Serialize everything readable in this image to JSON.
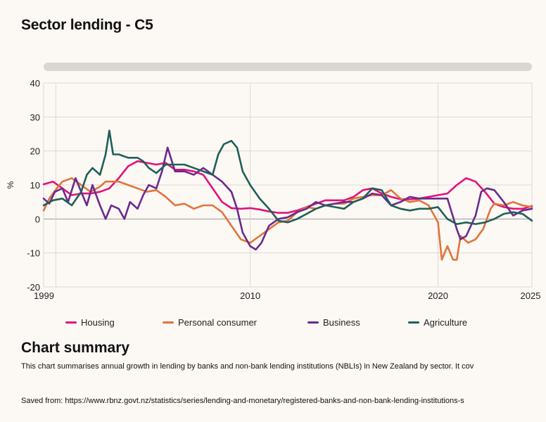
{
  "page": {
    "title": "Sector lending - C5",
    "summary_heading": "Chart summary",
    "summary_text": "This chart summarises annual growth in lending by banks and non-bank lending institutions (NBLIs) in New Zealand by sector. It cov",
    "saved_from": "Saved from: https://www.rbnz.govt.nz/statistics/series/lending-and-monetary/registered-banks-and-non-bank-lending-institutions-s"
  },
  "chart_data": {
    "type": "line",
    "title": "Sector lending - C5",
    "xlabel": "",
    "ylabel": "%",
    "xlim": [
      1999,
      2025
    ],
    "ylim": [
      -20,
      40
    ],
    "yticks": [
      "40",
      "30",
      "20",
      "10",
      "0",
      "-10",
      "-20"
    ],
    "xticks": [
      "1999",
      "2010",
      "2020",
      "2025"
    ],
    "grid": true,
    "legend_position": "bottom",
    "series": [
      {
        "name": "Housing",
        "color": "#e0127a",
        "points": [
          [
            1999,
            10.2
          ],
          [
            1999.5,
            11
          ],
          [
            2000,
            9
          ],
          [
            2000.5,
            7
          ],
          [
            2001,
            7.5
          ],
          [
            2001.5,
            7.5
          ],
          [
            2002,
            8
          ],
          [
            2002.5,
            9
          ],
          [
            2003,
            12
          ],
          [
            2003.5,
            15.5
          ],
          [
            2004,
            17
          ],
          [
            2004.5,
            16.5
          ],
          [
            2005,
            16
          ],
          [
            2005.5,
            16.5
          ],
          [
            2006,
            14.5
          ],
          [
            2006.5,
            14.5
          ],
          [
            2007,
            14
          ],
          [
            2007.5,
            13
          ],
          [
            2008,
            9
          ],
          [
            2008.5,
            5
          ],
          [
            2009,
            3.2
          ],
          [
            2009.5,
            3
          ],
          [
            2010,
            3.2
          ],
          [
            2010.5,
            2.8
          ],
          [
            2011,
            2.2
          ],
          [
            2011.5,
            1.8
          ],
          [
            2012,
            1.8
          ],
          [
            2012.5,
            2.5
          ],
          [
            2013,
            3.5
          ],
          [
            2013.5,
            4.5
          ],
          [
            2014,
            5.5
          ],
          [
            2014.5,
            5.5
          ],
          [
            2015,
            5.5
          ],
          [
            2015.5,
            6.5
          ],
          [
            2016,
            8.5
          ],
          [
            2016.5,
            9
          ],
          [
            2017,
            7.5
          ],
          [
            2017.5,
            6.5
          ],
          [
            2018,
            5.8
          ],
          [
            2018.5,
            5.8
          ],
          [
            2019,
            6
          ],
          [
            2019.5,
            6.5
          ],
          [
            2020,
            7
          ],
          [
            2020.5,
            7.5
          ],
          [
            2021,
            10
          ],
          [
            2021.5,
            12
          ],
          [
            2022,
            11
          ],
          [
            2022.5,
            8
          ],
          [
            2023,
            4.5
          ],
          [
            2023.5,
            3.5
          ],
          [
            2024,
            3
          ],
          [
            2024.5,
            3
          ],
          [
            2025,
            3.8
          ]
        ]
      },
      {
        "name": "Personal consumer",
        "color": "#e0743a",
        "points": [
          [
            1999,
            2.5
          ],
          [
            1999.3,
            6
          ],
          [
            1999.7,
            9
          ],
          [
            2000,
            11
          ],
          [
            2000.5,
            12
          ],
          [
            2001,
            10
          ],
          [
            2001.5,
            8
          ],
          [
            2002,
            9.5
          ],
          [
            2002.3,
            11
          ],
          [
            2003,
            11
          ],
          [
            2003.5,
            10
          ],
          [
            2004,
            9
          ],
          [
            2004.5,
            8
          ],
          [
            2005,
            8.5
          ],
          [
            2005.5,
            6.5
          ],
          [
            2006,
            4
          ],
          [
            2006.5,
            4.5
          ],
          [
            2007,
            3
          ],
          [
            2007.5,
            4
          ],
          [
            2008,
            4
          ],
          [
            2008.5,
            2
          ],
          [
            2009,
            -2
          ],
          [
            2009.5,
            -6
          ],
          [
            2010,
            -7
          ],
          [
            2010.5,
            -5
          ],
          [
            2011,
            -3
          ],
          [
            2011.5,
            -1
          ],
          [
            2012,
            -0.5
          ],
          [
            2012.5,
            2
          ],
          [
            2013,
            3.5
          ],
          [
            2013.5,
            3
          ],
          [
            2014,
            4
          ],
          [
            2014.5,
            4.5
          ],
          [
            2015,
            4.5
          ],
          [
            2015.5,
            6
          ],
          [
            2016,
            6.5
          ],
          [
            2016.5,
            7
          ],
          [
            2017,
            7
          ],
          [
            2017.5,
            8.5
          ],
          [
            2018,
            6
          ],
          [
            2018.5,
            5
          ],
          [
            2019,
            5.5
          ],
          [
            2019.5,
            4
          ],
          [
            2020,
            -1
          ],
          [
            2020.2,
            -12
          ],
          [
            2020.5,
            -8
          ],
          [
            2020.8,
            -12
          ],
          [
            2021,
            -12
          ],
          [
            2021.2,
            -5
          ],
          [
            2021.6,
            -7
          ],
          [
            2022,
            -6
          ],
          [
            2022.4,
            -3
          ],
          [
            2022.8,
            3
          ],
          [
            2023,
            4.5
          ],
          [
            2023.5,
            4
          ],
          [
            2024,
            5
          ],
          [
            2024.5,
            4
          ],
          [
            2025,
            3.5
          ]
        ]
      },
      {
        "name": "Business",
        "color": "#6a2a8c",
        "points": [
          [
            1999,
            6
          ],
          [
            1999.3,
            4.5
          ],
          [
            1999.6,
            8
          ],
          [
            2000,
            9
          ],
          [
            2000.3,
            5
          ],
          [
            2000.7,
            12
          ],
          [
            2001,
            8
          ],
          [
            2001.3,
            4
          ],
          [
            2001.6,
            10
          ],
          [
            2002,
            4
          ],
          [
            2002.3,
            0
          ],
          [
            2002.6,
            4
          ],
          [
            2003,
            3
          ],
          [
            2003.3,
            0
          ],
          [
            2003.6,
            5
          ],
          [
            2004,
            3
          ],
          [
            2004.3,
            7
          ],
          [
            2004.6,
            10
          ],
          [
            2005,
            9
          ],
          [
            2005.3,
            14
          ],
          [
            2005.6,
            21
          ],
          [
            2006,
            14
          ],
          [
            2006.5,
            14
          ],
          [
            2007,
            13
          ],
          [
            2007.5,
            15
          ],
          [
            2008,
            13
          ],
          [
            2008.5,
            11
          ],
          [
            2009,
            8
          ],
          [
            2009.3,
            3
          ],
          [
            2009.6,
            -4
          ],
          [
            2010,
            -8
          ],
          [
            2010.3,
            -9
          ],
          [
            2010.6,
            -7
          ],
          [
            2011,
            -2
          ],
          [
            2011.5,
            0
          ],
          [
            2012,
            0.5
          ],
          [
            2012.5,
            2
          ],
          [
            2013,
            3
          ],
          [
            2013.5,
            5
          ],
          [
            2014,
            4
          ],
          [
            2014.5,
            4.5
          ],
          [
            2015,
            5
          ],
          [
            2015.5,
            5
          ],
          [
            2016,
            6
          ],
          [
            2016.5,
            7.5
          ],
          [
            2017,
            7
          ],
          [
            2017.5,
            4
          ],
          [
            2018,
            5
          ],
          [
            2018.5,
            6.5
          ],
          [
            2019,
            6
          ],
          [
            2019.5,
            6
          ],
          [
            2020,
            6
          ],
          [
            2020.5,
            6
          ],
          [
            2021,
            -3
          ],
          [
            2021.2,
            -6
          ],
          [
            2021.5,
            -5
          ],
          [
            2022,
            1
          ],
          [
            2022.3,
            8
          ],
          [
            2022.6,
            9
          ],
          [
            2023,
            8.5
          ],
          [
            2023.5,
            5
          ],
          [
            2024,
            1
          ],
          [
            2024.5,
            2.5
          ],
          [
            2025,
            3
          ]
        ]
      },
      {
        "name": "Agriculture",
        "color": "#1e6057",
        "points": [
          [
            1999,
            4
          ],
          [
            1999.5,
            5.5
          ],
          [
            2000,
            6
          ],
          [
            2000.5,
            4
          ],
          [
            2001,
            8
          ],
          [
            2001.3,
            13
          ],
          [
            2001.6,
            15
          ],
          [
            2002,
            13
          ],
          [
            2002.3,
            19
          ],
          [
            2002.5,
            26
          ],
          [
            2002.7,
            19
          ],
          [
            2003,
            19
          ],
          [
            2003.5,
            18
          ],
          [
            2004,
            18
          ],
          [
            2004.3,
            17
          ],
          [
            2004.6,
            15
          ],
          [
            2005,
            13.5
          ],
          [
            2005.5,
            16
          ],
          [
            2006,
            16
          ],
          [
            2006.5,
            16
          ],
          [
            2007,
            15
          ],
          [
            2007.5,
            14
          ],
          [
            2008,
            13
          ],
          [
            2008.3,
            19
          ],
          [
            2008.6,
            22
          ],
          [
            2009,
            23
          ],
          [
            2009.3,
            21
          ],
          [
            2009.6,
            14
          ],
          [
            2010,
            10
          ],
          [
            2010.5,
            6
          ],
          [
            2011,
            3
          ],
          [
            2011.5,
            -0.5
          ],
          [
            2012,
            -1
          ],
          [
            2012.5,
            0
          ],
          [
            2013,
            1.5
          ],
          [
            2013.5,
            3
          ],
          [
            2014,
            4
          ],
          [
            2014.5,
            3.5
          ],
          [
            2015,
            3
          ],
          [
            2015.5,
            5
          ],
          [
            2016,
            6
          ],
          [
            2016.5,
            9
          ],
          [
            2017,
            8.5
          ],
          [
            2017.5,
            4
          ],
          [
            2018,
            3
          ],
          [
            2018.5,
            2.5
          ],
          [
            2019,
            3
          ],
          [
            2019.5,
            3
          ],
          [
            2020,
            3.5
          ],
          [
            2020.5,
            0
          ],
          [
            2021,
            -1.5
          ],
          [
            2021.5,
            -1
          ],
          [
            2022,
            -1.5
          ],
          [
            2022.5,
            -1
          ],
          [
            2023,
            0
          ],
          [
            2023.5,
            1.5
          ],
          [
            2024,
            2
          ],
          [
            2024.5,
            1.5
          ],
          [
            2025,
            -0.5
          ]
        ]
      }
    ]
  }
}
